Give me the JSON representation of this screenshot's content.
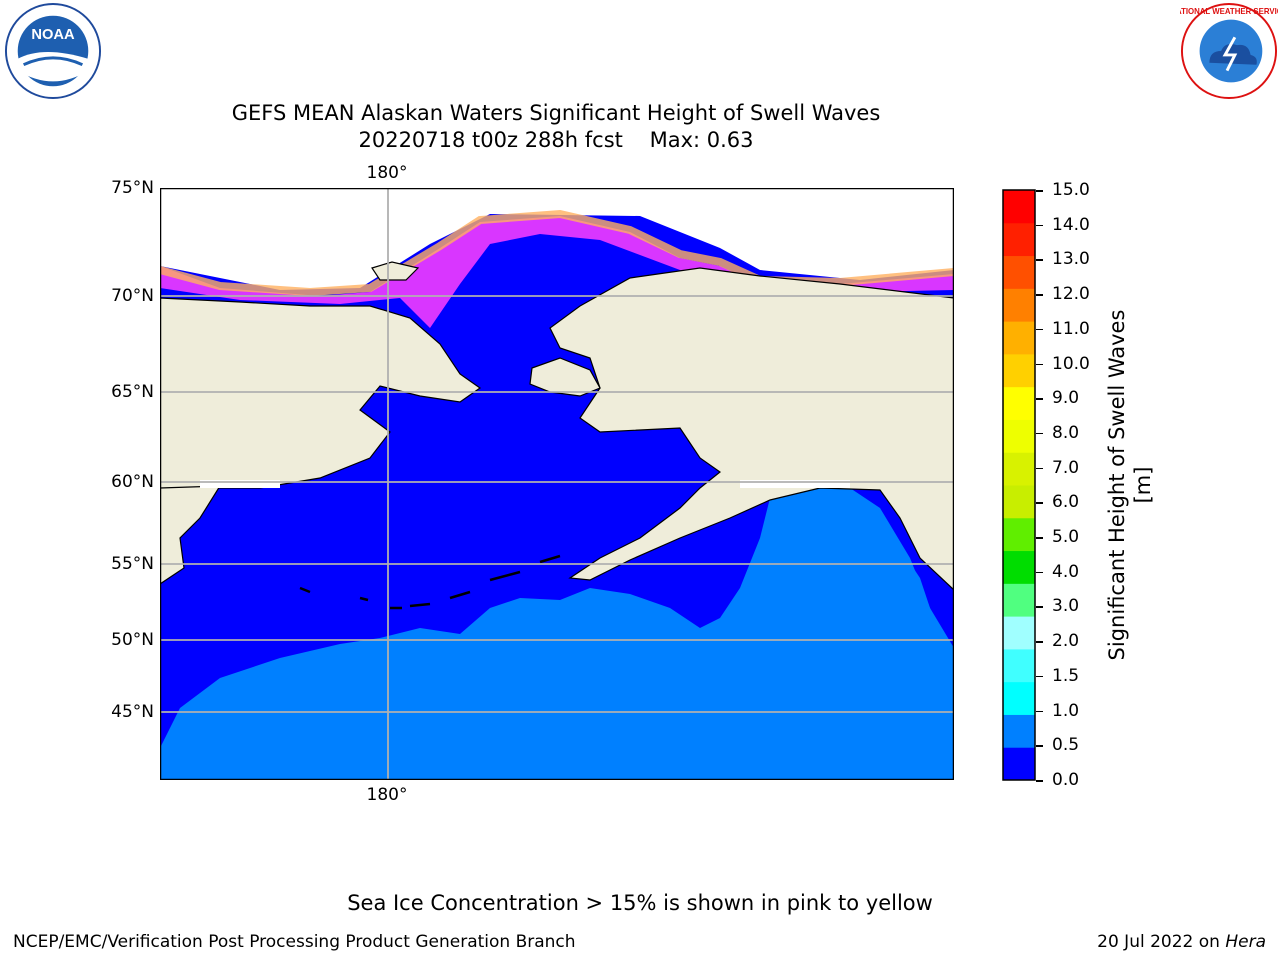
{
  "title": {
    "line1": "GEFS MEAN Alaskan Waters Significant Height of Swell Waves",
    "line2": "20220718 t00z 288h fcst    Max: 0.63"
  },
  "map": {
    "lon_label_top": "180°",
    "lon_label_bottom": "180°",
    "lat_labels": [
      "75°N",
      "70°N",
      "65°N",
      "60°N",
      "55°N",
      "50°N",
      "45°N"
    ],
    "colors": {
      "ocean_low": "#0000ff",
      "ocean_mid": "#0080ff",
      "land": "#efedda",
      "gridline": "#b0b0b0"
    }
  },
  "colorbar": {
    "title": "Significant Height of Swell Waves [m]",
    "ticks": [
      "15.0",
      "14.0",
      "13.0",
      "12.0",
      "11.0",
      "10.0",
      "9.0",
      "8.0",
      "7.0",
      "6.0",
      "5.0",
      "4.0",
      "3.0",
      "2.0",
      "1.5",
      "1.0",
      "0.5",
      "0.0"
    ],
    "colors": [
      "#0000ff",
      "#0080ff",
      "#00ffff",
      "#40ffff",
      "#a0ffff",
      "#50ff80",
      "#00dd00",
      "#60ee00",
      "#c8ee00",
      "#d8f200",
      "#eeff00",
      "#ffff00",
      "#ffd000",
      "#ffb000",
      "#ff8000",
      "#ff5000",
      "#ff2000",
      "#ff0000"
    ]
  },
  "logos": {
    "noaa": "NOAA",
    "nws": "NATIONAL WEATHER SERVICE"
  },
  "note": "Sea Ice Concentration > 15% is shown in pink to yellow",
  "footer": {
    "left": "NCEP/EMC/Verification Post Processing Product Generation Branch",
    "right_date": "20 Jul 2022 on ",
    "right_host": "Hera"
  }
}
